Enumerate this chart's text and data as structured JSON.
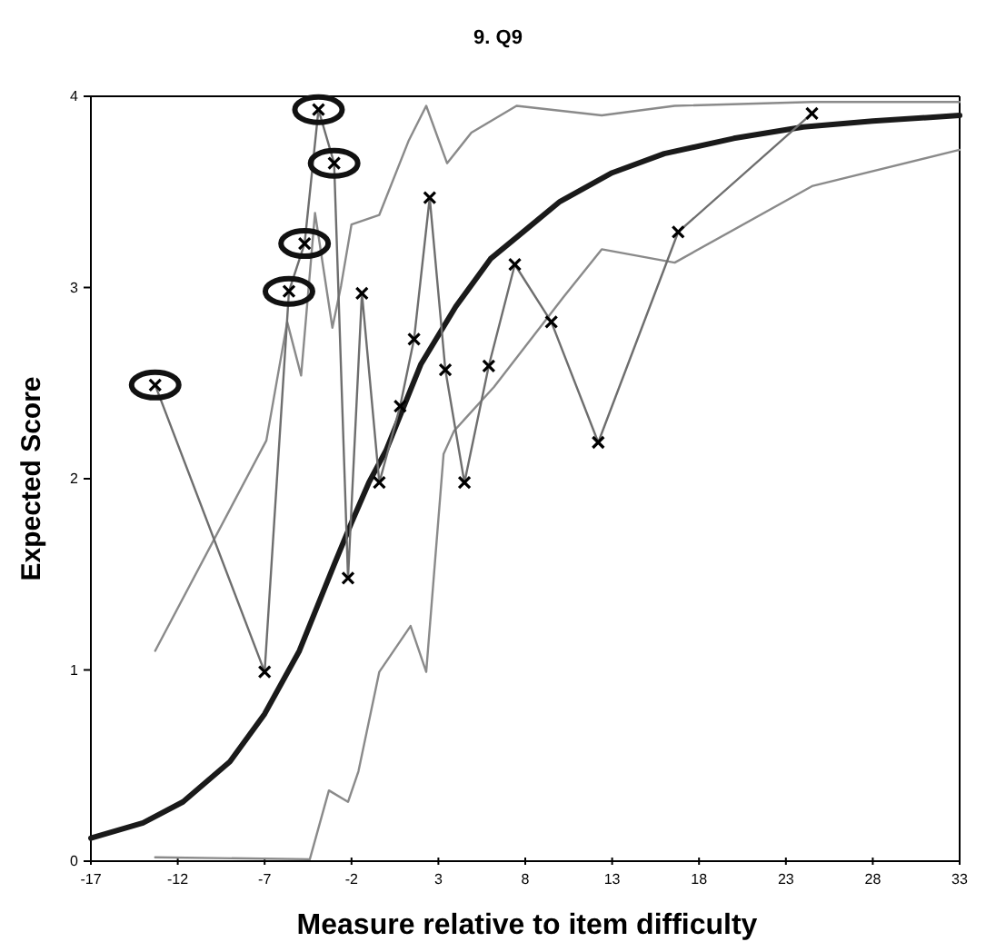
{
  "chart_data": {
    "type": "line",
    "title": "9. Q9",
    "xlabel": "Measure relative to item difficulty",
    "ylabel": "Expected Score",
    "xlim": [
      -17,
      33
    ],
    "xticks": [
      -17,
      -12,
      -7,
      -2,
      3,
      8,
      13,
      18,
      23,
      28,
      33
    ],
    "ylim": [
      0,
      4
    ],
    "yticks": [
      0,
      1,
      2,
      3,
      4
    ],
    "grid": false,
    "series": [
      {
        "color": "#1a1a1a",
        "marker": "none",
        "x": [
          -17,
          -14,
          -11.7,
          -9,
          -7,
          -5,
          -3,
          -2,
          -1,
          0,
          2,
          4,
          6,
          8,
          10,
          13,
          16,
          20,
          24,
          28,
          33
        ],
        "values": [
          0.12,
          0.2,
          0.31,
          0.52,
          0.77,
          1.1,
          1.55,
          1.77,
          1.98,
          2.15,
          2.6,
          2.9,
          3.15,
          3.3,
          3.45,
          3.6,
          3.7,
          3.78,
          3.84,
          3.87,
          3.9
        ]
      },
      {
        "color": "#8a8a8a",
        "marker": "none",
        "x": [
          -13.3,
          -6.9,
          -5.7,
          -4.9,
          -4.1,
          -3.1,
          -2.6,
          -2.0,
          -0.4,
          1.3,
          2.3,
          3.5,
          4.9,
          7.5,
          12.4,
          16.6,
          24.5,
          33
        ],
        "values": [
          1.1,
          2.2,
          2.82,
          2.54,
          3.39,
          2.79,
          3.01,
          3.33,
          3.38,
          3.77,
          3.95,
          3.65,
          3.81,
          3.95,
          3.9,
          3.95,
          3.97,
          3.97
        ]
      },
      {
        "color": "#8a8a8a",
        "marker": "none",
        "x": [
          -13.3,
          -4.4,
          -3.3,
          -2.2,
          -1.6,
          -0.4,
          1.4,
          2.3,
          3.3,
          3.9,
          6.2,
          10.2,
          12.4,
          16.6,
          24.5,
          33
        ],
        "values": [
          0.02,
          0.01,
          0.37,
          0.31,
          0.47,
          0.99,
          1.23,
          0.99,
          2.13,
          2.25,
          2.48,
          2.95,
          3.2,
          3.13,
          3.53,
          3.72
        ]
      },
      {
        "color": "#6e6e6e",
        "marker": "cross",
        "x": [
          -13.3,
          -7.0,
          -5.6,
          -4.7,
          -3.9,
          -3.0,
          -2.2,
          -1.4,
          -0.4,
          0.8,
          1.6,
          2.5,
          3.4,
          4.5,
          5.9,
          7.4,
          9.5,
          12.2,
          16.8,
          24.5
        ],
        "values": [
          2.49,
          0.99,
          2.98,
          3.23,
          3.93,
          3.65,
          1.48,
          2.97,
          1.98,
          2.38,
          2.73,
          3.47,
          2.57,
          1.98,
          2.59,
          3.12,
          2.82,
          2.19,
          3.29,
          3.91
        ]
      },
      {
        "type": "scatter",
        "color": "#111111",
        "marker": "circle",
        "x": [
          -13.3,
          -5.6,
          -4.7,
          -3.9,
          -3.0
        ],
        "values": [
          2.49,
          2.98,
          3.23,
          3.93,
          3.65
        ]
      }
    ]
  }
}
